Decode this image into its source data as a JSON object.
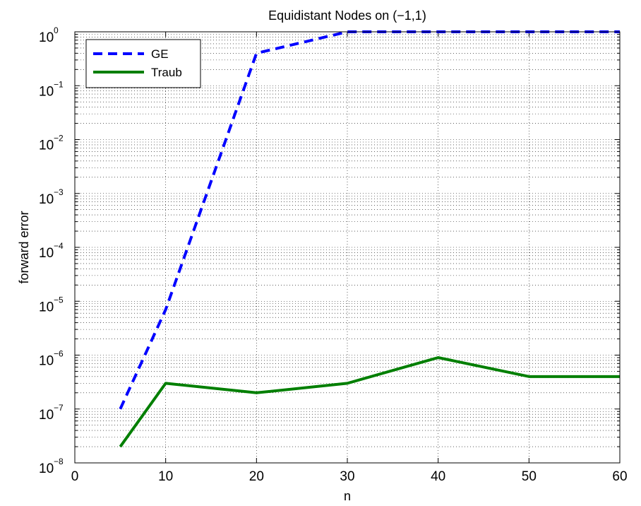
{
  "chart_data": {
    "type": "line",
    "title": "Equidistant Nodes on (−1,1)",
    "xlabel": "n",
    "ylabel": "forward error",
    "xlim": [
      0,
      60
    ],
    "ylim": [
      1e-08,
      1
    ],
    "yscale": "log",
    "grid": true,
    "legend_position": "top-left",
    "x_ticks": [
      0,
      10,
      20,
      30,
      40,
      50,
      60
    ],
    "y_ticks": [
      {
        "value": 1e-08,
        "base": "10",
        "exp": "−8"
      },
      {
        "value": 1e-07,
        "base": "10",
        "exp": "−7"
      },
      {
        "value": 1e-06,
        "base": "10",
        "exp": "−6"
      },
      {
        "value": 1e-05,
        "base": "10",
        "exp": "−5"
      },
      {
        "value": 0.0001,
        "base": "10",
        "exp": "−4"
      },
      {
        "value": 0.001,
        "base": "10",
        "exp": "−3"
      },
      {
        "value": 0.01,
        "base": "10",
        "exp": "−2"
      },
      {
        "value": 0.1,
        "base": "10",
        "exp": "−1"
      },
      {
        "value": 1,
        "base": "10",
        "exp": "0"
      }
    ],
    "series": [
      {
        "name": "GE",
        "color": "#0000ff",
        "style": "dashed",
        "x": [
          5,
          10,
          20,
          30,
          40,
          50,
          60
        ],
        "y": [
          1e-07,
          7e-06,
          0.4,
          1,
          1,
          1,
          1
        ]
      },
      {
        "name": "Traub",
        "color": "#007f00",
        "style": "solid",
        "x": [
          5,
          10,
          20,
          30,
          40,
          50,
          60
        ],
        "y": [
          2e-08,
          3e-07,
          2e-07,
          3e-07,
          9e-07,
          4e-07,
          4e-07
        ]
      }
    ]
  }
}
